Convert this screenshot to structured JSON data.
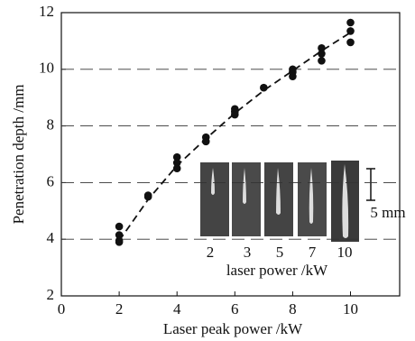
{
  "chart_data": {
    "type": "scatter",
    "x_label": "Laser peak power /kW",
    "y_label": "Penetration depth /mm",
    "xlim": [
      0,
      11.7
    ],
    "ylim": [
      2,
      12
    ],
    "xticks": [
      0,
      2,
      4,
      6,
      8,
      10
    ],
    "yticks": [
      2,
      4,
      6,
      8,
      10,
      12
    ],
    "grid": true,
    "series": [
      {
        "type": "scatter",
        "color": "#111111",
        "x": [
          2,
          2,
          2,
          2,
          3,
          3,
          4,
          4,
          4,
          5,
          5,
          6,
          6,
          6,
          7,
          8,
          8,
          8,
          9,
          9,
          9,
          10,
          10,
          10
        ],
        "values": [
          4.45,
          4.15,
          3.95,
          3.9,
          5.5,
          5.55,
          6.9,
          6.7,
          6.5,
          7.6,
          7.45,
          8.6,
          8.5,
          8.4,
          9.35,
          10.0,
          9.9,
          9.75,
          10.75,
          10.55,
          10.3,
          11.65,
          11.35,
          10.95
        ]
      },
      {
        "type": "line",
        "color": "#111111",
        "dashed": true,
        "x": [
          2,
          3,
          4,
          5,
          6,
          7,
          8,
          9,
          10
        ],
        "values": [
          3.95,
          5.4,
          6.6,
          7.55,
          8.45,
          9.25,
          9.95,
          10.65,
          11.3
        ]
      }
    ],
    "inset": {
      "labels": [
        "2",
        "3",
        "5",
        "7",
        "10"
      ],
      "title": "laser power /kW",
      "scale_label": "5 mm"
    }
  }
}
